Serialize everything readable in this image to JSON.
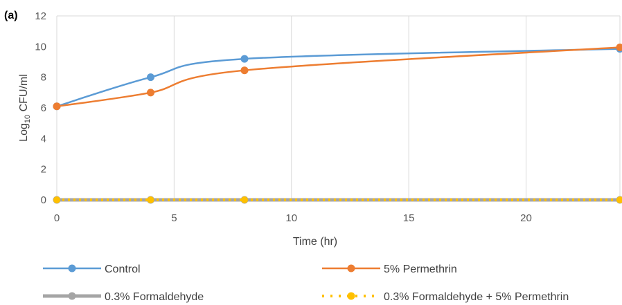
{
  "panel_label": "(a)",
  "chart_data": {
    "type": "line",
    "title": "",
    "xlabel": "Time (hr)",
    "ylabel": {
      "base": "Log",
      "sub": "10",
      "rest": " CFU/ml"
    },
    "xlim": [
      0,
      24
    ],
    "ylim": [
      0,
      12
    ],
    "xticks": [
      0,
      5,
      10,
      15,
      20
    ],
    "yticks": [
      0,
      2,
      4,
      6,
      8,
      10,
      12
    ],
    "grid": "vertical",
    "legend_position": "bottom",
    "series": [
      {
        "name": "Control",
        "color": "#5b9bd5",
        "style": "solid-smooth",
        "x": [
          0,
          4,
          8,
          24
        ],
        "y": [
          6.1,
          8.0,
          9.2,
          9.85
        ],
        "error": [
          0,
          0,
          0,
          0.1
        ]
      },
      {
        "name": "5% Permethrin",
        "color": "#ed7d31",
        "style": "solid-smooth",
        "x": [
          0,
          4,
          8,
          24
        ],
        "y": [
          6.1,
          7.0,
          8.45,
          9.95
        ],
        "error": [
          0,
          0.1,
          0.1,
          0.05
        ]
      },
      {
        "name": "0.3% Formaldehyde",
        "color": "#a5a5a5",
        "style": "thick",
        "x": [
          0,
          4,
          8,
          24
        ],
        "y": [
          0,
          0,
          0,
          0
        ],
        "error": [
          0,
          0,
          0,
          0
        ]
      },
      {
        "name": "0.3% Formaldehyde + 5% Permethrin",
        "color": "#ffc000",
        "style": "dotted",
        "x": [
          0,
          4,
          8,
          24
        ],
        "y": [
          0,
          0,
          0,
          0
        ],
        "error": [
          0,
          0,
          0,
          0
        ]
      }
    ]
  }
}
